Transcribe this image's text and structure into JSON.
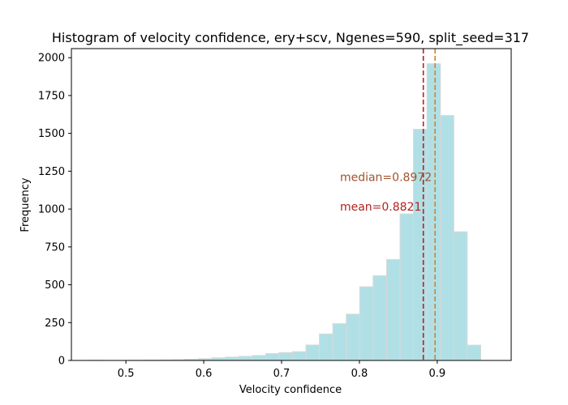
{
  "chart_data": {
    "type": "bar",
    "title": "Histogram of velocity confidence, ery+scv, Ngenes=590, split_seed=317",
    "xlabel": "Velocity confidence",
    "ylabel": "Frequency",
    "xlim": [
      0.43,
      0.995
    ],
    "ylim": [
      0,
      2060
    ],
    "xticks": [
      0.5,
      0.6,
      0.7,
      0.8,
      0.9
    ],
    "xtick_labels": [
      "0.5",
      "0.6",
      "0.7",
      "0.8",
      "0.9"
    ],
    "yticks": [
      0,
      250,
      500,
      750,
      1000,
      1250,
      1500,
      1750,
      2000
    ],
    "ytick_labels": [
      "0",
      "250",
      "500",
      "750",
      "1000",
      "1250",
      "1500",
      "1750",
      "2000"
    ],
    "bin_width": 0.01727,
    "bin_edges_start": 0.455,
    "values": [
      1,
      0,
      0,
      1,
      2,
      3,
      5,
      8,
      12,
      18,
      22,
      27,
      33,
      45,
      52,
      58,
      102,
      175,
      243,
      306,
      487,
      560,
      667,
      968,
      1527,
      1960,
      1618,
      850,
      101
    ],
    "bar_color": "#b0e0e6",
    "bar_edge_color": "#d8d8d8",
    "lines": [
      {
        "x": 0.8821,
        "color": "#b22222",
        "style": "dashed"
      },
      {
        "x": 0.8972,
        "color": "#d2822d",
        "style": "dashed"
      }
    ],
    "annotations": [
      {
        "text": "median=0.8972",
        "x": 0.775,
        "y": 1185,
        "color": "#a0522d"
      },
      {
        "text": "mean=0.8821",
        "x": 0.775,
        "y": 990,
        "color": "#b22222"
      }
    ]
  }
}
